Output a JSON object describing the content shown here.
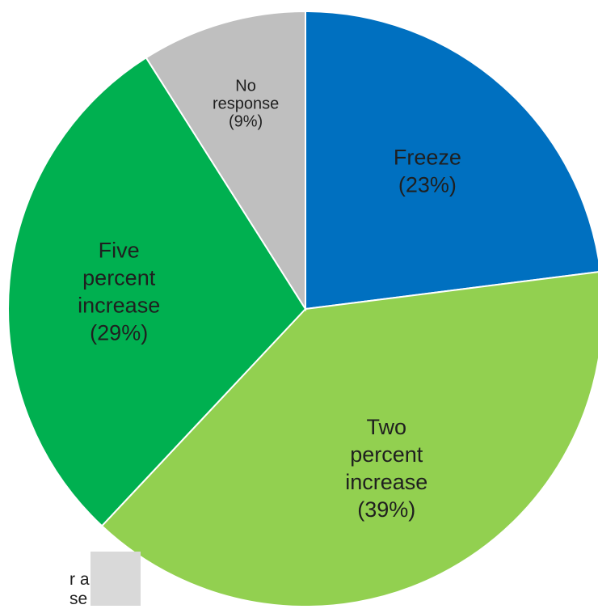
{
  "chart_data": {
    "type": "pie",
    "slices": [
      {
        "label": "Freeze",
        "value": 23,
        "display": "Freeze\n(23%)",
        "color": "#0070c0"
      },
      {
        "label": "Two percent increase",
        "value": 39,
        "display": "Two\npercent\nincrease\n(39%)",
        "color": "#92d050"
      },
      {
        "label": "Five percent increase",
        "value": 29,
        "display": "Five\npercent\nincrease\n(29%)",
        "color": "#00b050"
      },
      {
        "label": "No response",
        "value": 9,
        "display": "No\nresponse\n(9%)",
        "color": "#bfbfbf"
      }
    ],
    "title": "",
    "start_angle_deg": 0,
    "direction": "clockwise",
    "border_color": "#ffffff"
  },
  "partial_note": {
    "text": "r a\nse",
    "background": "#d9d9d9"
  }
}
